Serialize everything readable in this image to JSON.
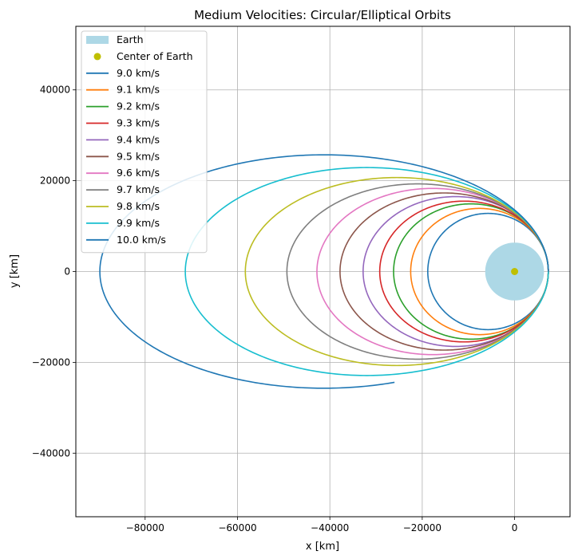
{
  "chart_data": {
    "type": "line",
    "title": "Medium Velocities: Circular/Elliptical Orbits",
    "xlabel": "x [km]",
    "ylabel": "y [km]",
    "xlim": [
      -95000,
      12000
    ],
    "ylim": [
      -54000,
      54000
    ],
    "xticks": [
      -80000,
      -60000,
      -40000,
      -20000,
      0
    ],
    "yticks": [
      -40000,
      -20000,
      0,
      20000,
      40000
    ],
    "xtick_labels": [
      "−80000",
      "−60000",
      "−40000",
      "−20000",
      "0"
    ],
    "ytick_labels": [
      "−40000",
      "−20000",
      "0",
      "20000",
      "40000"
    ],
    "grid": true,
    "legend_position": "top-left",
    "earth": {
      "label": "Earth",
      "radius_km": 6371,
      "color": "#add8e6"
    },
    "center": {
      "label": "Center of Earth",
      "x": 0,
      "y": 0,
      "color": "#bfbf00"
    },
    "start_x_km": 7300,
    "series": [
      {
        "name": "9.0 km/s",
        "color": "#1f77b4",
        "periapsis_x": 7300,
        "apoapsis_x": -18800,
        "b_semi_minor": 12800
      },
      {
        "name": "9.1 km/s",
        "color": "#ff7f0e",
        "periapsis_x": 7300,
        "apoapsis_x": -22500,
        "b_semi_minor": 13900
      },
      {
        "name": "9.2 km/s",
        "color": "#2ca02c",
        "periapsis_x": 7300,
        "apoapsis_x": -26200,
        "b_semi_minor": 14900
      },
      {
        "name": "9.3 km/s",
        "color": "#d62728",
        "periapsis_x": 7300,
        "apoapsis_x": -29200,
        "b_semi_minor": 15500
      },
      {
        "name": "9.4 km/s",
        "color": "#9467bd",
        "periapsis_x": 7300,
        "apoapsis_x": -32800,
        "b_semi_minor": 16500
      },
      {
        "name": "9.5 km/s",
        "color": "#8c564b",
        "periapsis_x": 7300,
        "apoapsis_x": -37800,
        "b_semi_minor": 17300
      },
      {
        "name": "9.6 km/s",
        "color": "#e377c2",
        "periapsis_x": 7300,
        "apoapsis_x": -42800,
        "b_semi_minor": 18300
      },
      {
        "name": "9.7 km/s",
        "color": "#7f7f7f",
        "periapsis_x": 7300,
        "apoapsis_x": -49300,
        "b_semi_minor": 19300
      },
      {
        "name": "9.8 km/s",
        "color": "#bcbd22",
        "periapsis_x": 7300,
        "apoapsis_x": -58300,
        "b_semi_minor": 20700
      },
      {
        "name": "9.9 km/s",
        "color": "#17becf",
        "periapsis_x": 7300,
        "apoapsis_x": -71300,
        "b_semi_minor": 22900
      },
      {
        "name": "10.0 km/s",
        "color": "#1f77b4",
        "periapsis_x": 7300,
        "apoapsis_x": -89800,
        "b_semi_minor": 25700,
        "end_x": -26000,
        "end_y": -24400
      }
    ]
  }
}
